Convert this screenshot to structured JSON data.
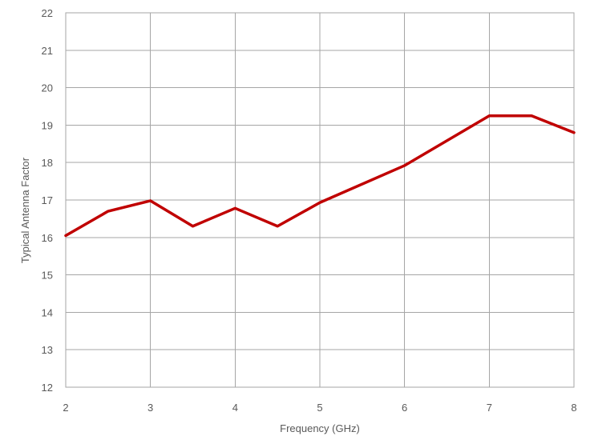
{
  "chart_data": {
    "type": "line",
    "title": "",
    "xlabel": "Frequency (GHz)",
    "ylabel": "Typical Antenna Factor",
    "xlim": [
      2,
      8
    ],
    "ylim": [
      12,
      22
    ],
    "x_ticks": [
      2,
      3,
      4,
      5,
      6,
      7,
      8
    ],
    "y_ticks": [
      12,
      13,
      14,
      15,
      16,
      17,
      18,
      19,
      20,
      21,
      22
    ],
    "grid": true,
    "legend": "none",
    "series": [
      {
        "color": "#c00000",
        "x": [
          2,
          2.5,
          3,
          3.5,
          4,
          4.5,
          5,
          6,
          7,
          7.5,
          8
        ],
        "y": [
          16.05,
          16.7,
          16.98,
          16.3,
          16.78,
          16.3,
          16.93,
          17.92,
          19.25,
          19.25,
          18.8
        ]
      }
    ]
  }
}
